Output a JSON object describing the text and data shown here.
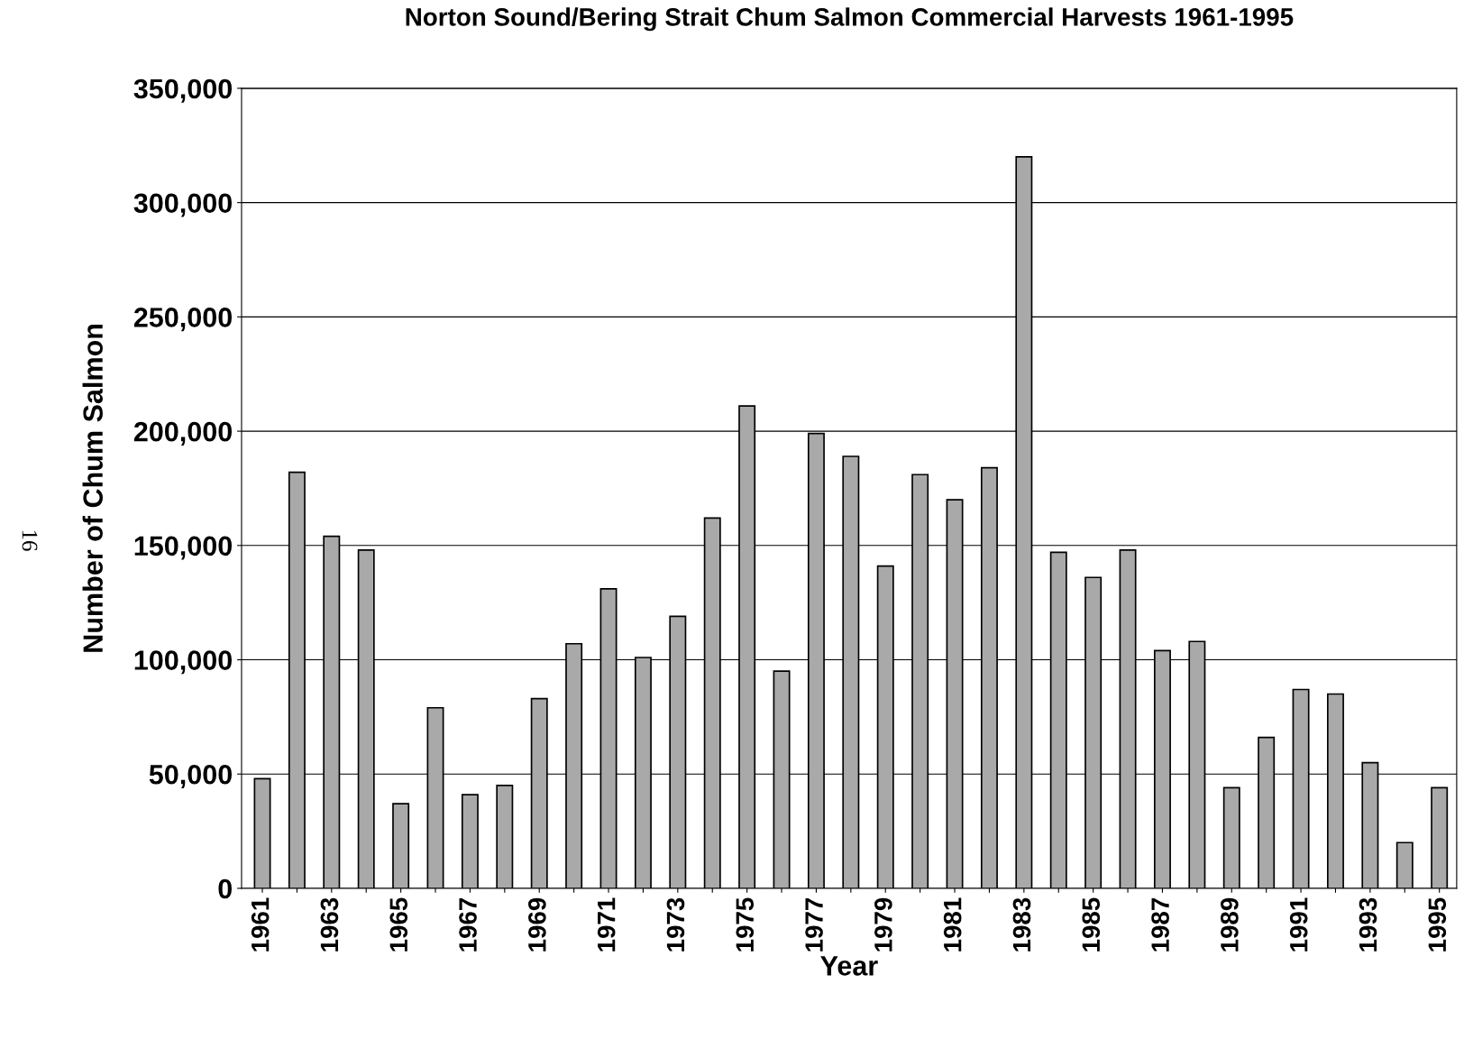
{
  "chart_data": {
    "type": "bar",
    "title": "Norton Sound/Bering Strait Chum Salmon Commercial Harvests 1961-1995",
    "xlabel": "Year",
    "ylabel": "Number of Chum Salmon",
    "categories": [
      "1961",
      null,
      "1963",
      null,
      "1965",
      null,
      "1967",
      null,
      "1969",
      null,
      "1971",
      null,
      "1973",
      null,
      "1975",
      null,
      "1977",
      null,
      "1979",
      null,
      "1981",
      null,
      "1983",
      null,
      "1985",
      null,
      "1987",
      null,
      "1989",
      null,
      "1991",
      null,
      "1993",
      null,
      "1995"
    ],
    "values": [
      48000,
      182000,
      154000,
      148000,
      37000,
      79000,
      41000,
      45000,
      83000,
      107000,
      131000,
      101000,
      119000,
      162000,
      211000,
      95000,
      199000,
      189000,
      141000,
      181000,
      170000,
      184000,
      320000,
      147000,
      136000,
      148000,
      104000,
      108000,
      44000,
      66000,
      87000,
      85000,
      55000,
      20000,
      44000
    ],
    "color": "#a9a9a9",
    "ylim": [
      0,
      350000
    ],
    "yticks": [
      {
        "value": 0,
        "label": "0"
      },
      {
        "value": 50000,
        "label": "50,000"
      },
      {
        "value": 100000,
        "label": "100,000"
      },
      {
        "value": 150000,
        "label": "150,000"
      },
      {
        "value": 200000,
        "label": "200,000"
      },
      {
        "value": 250000,
        "label": "250,000"
      },
      {
        "value": 300000,
        "label": "300,000"
      },
      {
        "value": 350000,
        "label": "350,000"
      }
    ],
    "grid": "y",
    "annotations": [
      "16"
    ]
  }
}
